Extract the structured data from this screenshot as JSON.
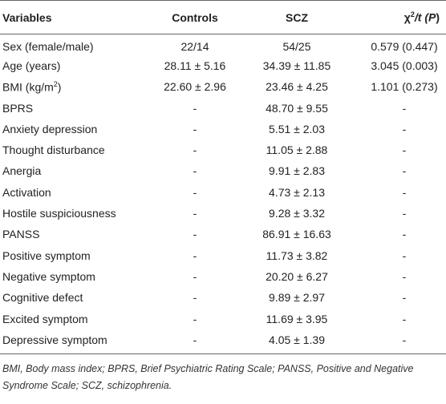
{
  "table": {
    "headers": {
      "variables": "Variables",
      "controls": "Controls",
      "scz": "SCZ",
      "stat_prefix": "χ",
      "stat_sup": "2",
      "stat_mid": "/t (",
      "stat_p": "P",
      "stat_close": ")"
    },
    "rows": [
      {
        "variable": "Sex (female/male)",
        "controls": "22/14",
        "scz": "54/25",
        "stat": "0.579 (0.447)"
      },
      {
        "variable": "Age (years)",
        "controls": "28.11 ± 5.16",
        "scz": "34.39 ± 11.85",
        "stat": "3.045 (0.003)"
      },
      {
        "variable": "BMI (kg/m",
        "variable_sup": "2",
        "variable_suffix": ")",
        "controls": "22.60 ± 2.96",
        "scz": "23.46 ± 4.25",
        "stat": "1.101 (0.273)"
      },
      {
        "variable": "BPRS",
        "controls": "-",
        "scz": "48.70 ± 9.55",
        "stat": "-"
      },
      {
        "variable": "Anxiety depression",
        "controls": "-",
        "scz": "5.51 ± 2.03",
        "stat": "-"
      },
      {
        "variable": "Thought disturbance",
        "controls": "-",
        "scz": "11.05 ± 2.88",
        "stat": "-"
      },
      {
        "variable": "Anergia",
        "controls": "-",
        "scz": "9.91 ± 2.83",
        "stat": "-"
      },
      {
        "variable": "Activation",
        "controls": "-",
        "scz": "4.73 ± 2.13",
        "stat": "-"
      },
      {
        "variable": "Hostile suspiciousness",
        "controls": "-",
        "scz": "9.28 ± 3.32",
        "stat": "-"
      },
      {
        "variable": "PANSS",
        "controls": "-",
        "scz": "86.91 ± 16.63",
        "stat": "-"
      },
      {
        "variable": "Positive symptom",
        "controls": "-",
        "scz": "11.73 ± 3.82",
        "stat": "-"
      },
      {
        "variable": "Negative symptom",
        "controls": "-",
        "scz": "20.20 ± 6.27",
        "stat": "-"
      },
      {
        "variable": "Cognitive defect",
        "controls": "-",
        "scz": "9.89 ± 2.97",
        "stat": "-"
      },
      {
        "variable": "Excited symptom",
        "controls": "-",
        "scz": "11.69 ± 3.95",
        "stat": "-"
      },
      {
        "variable": "Depressive symptom",
        "controls": "-",
        "scz": "4.05 ± 1.39",
        "stat": "-"
      }
    ]
  },
  "footnote": "BMI, Body mass index; BPRS, Brief Psychiatric Rating Scale; PANSS, Positive and Negative Syndrome Scale; SCZ, schizophrenia."
}
